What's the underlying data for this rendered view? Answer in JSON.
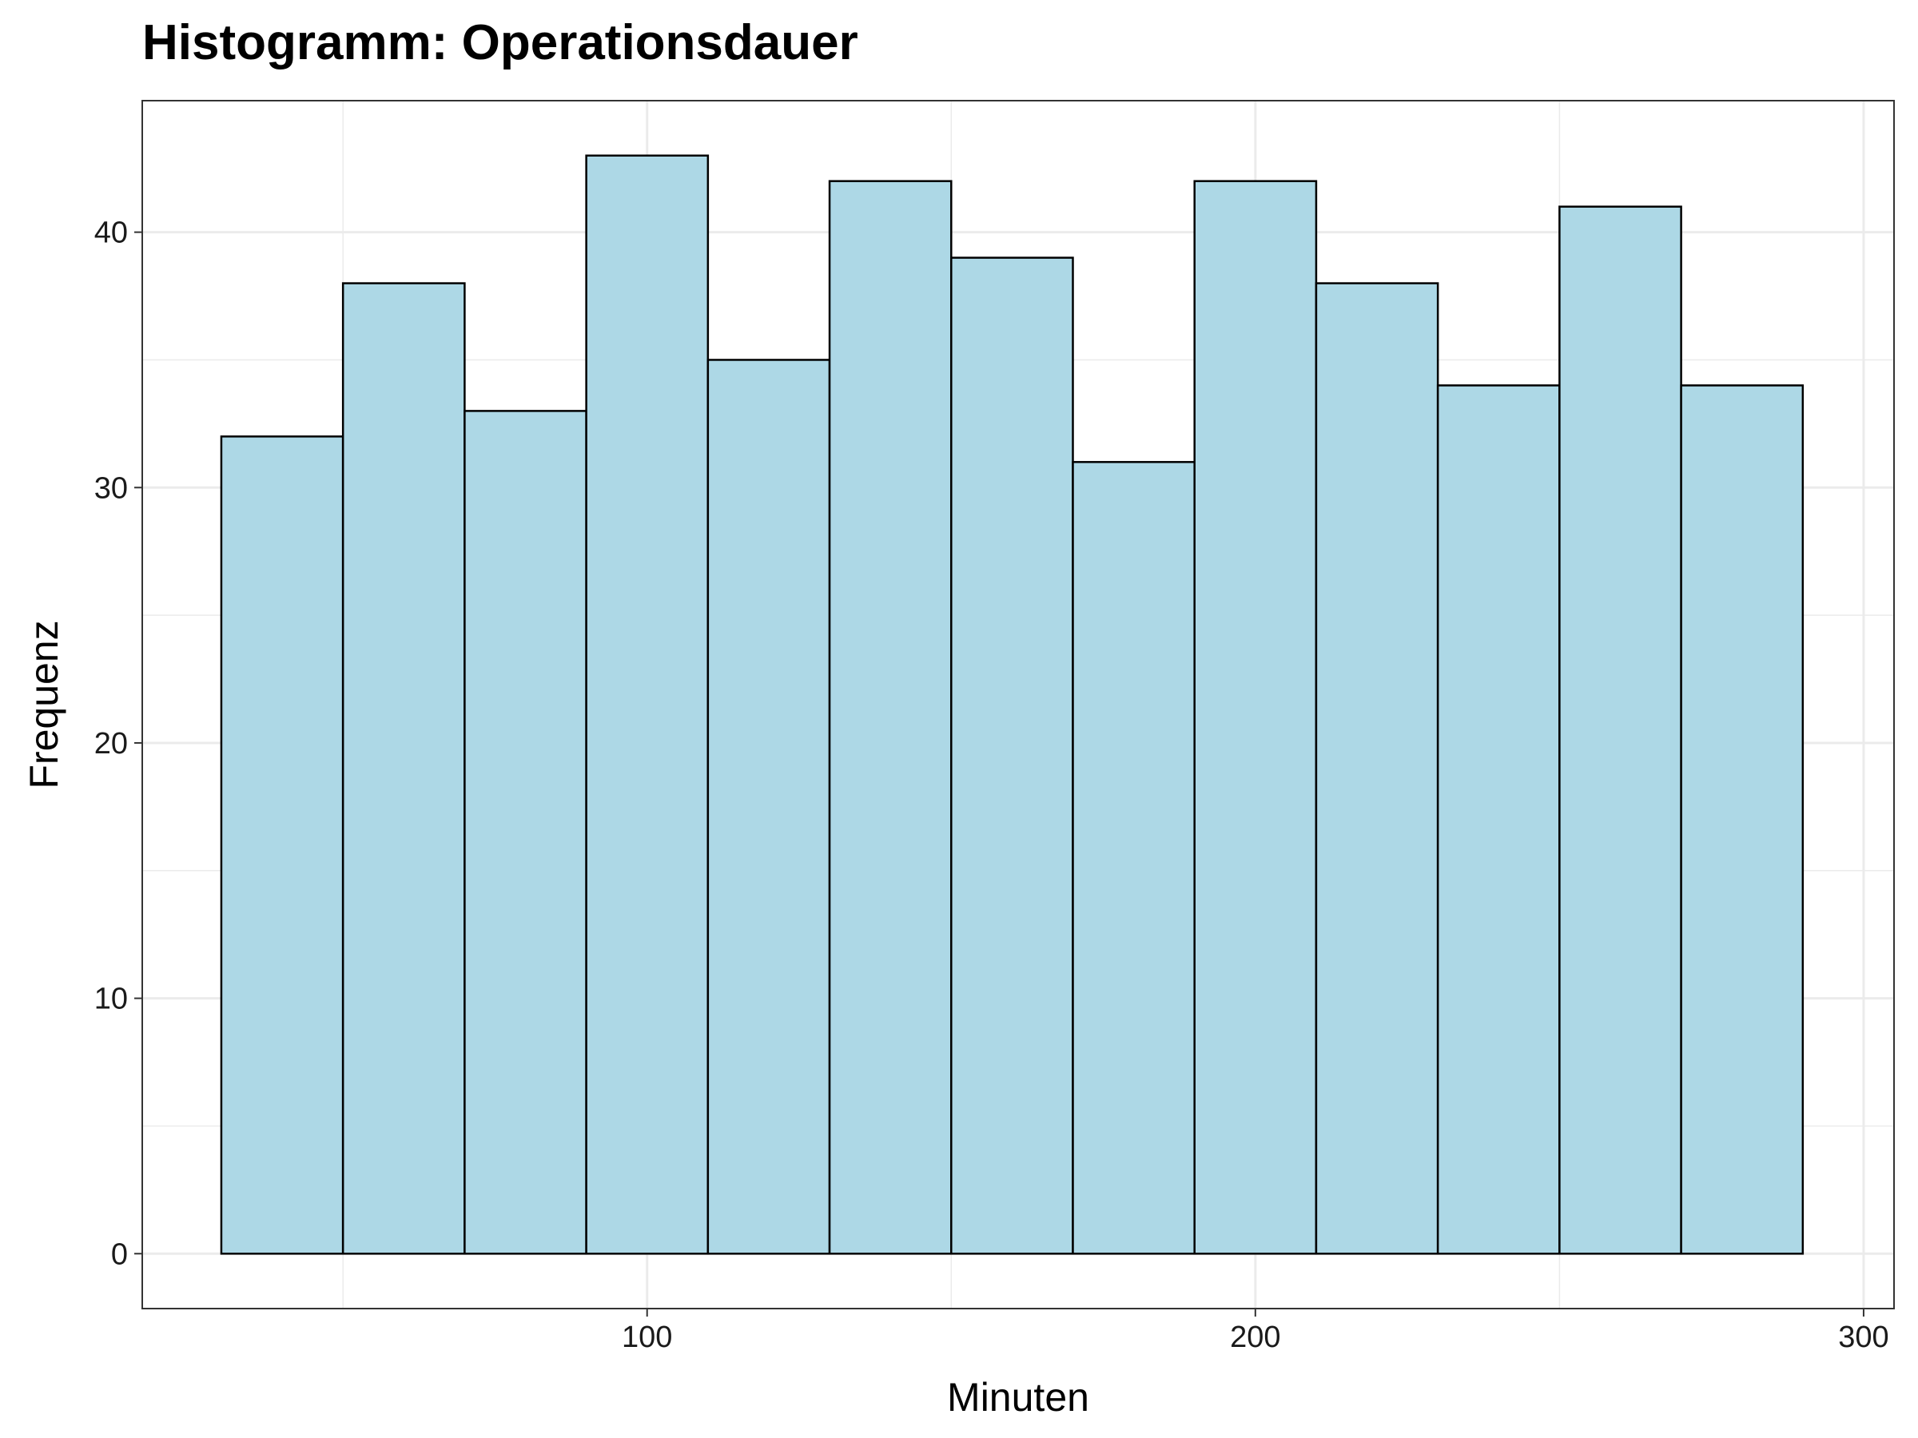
{
  "chart_data": {
    "type": "bar",
    "title": "Histogramm: Operationsdauer",
    "xlabel": "Minuten",
    "ylabel": "Frequenz",
    "bin_width": 20,
    "bins": [
      {
        "start": 30,
        "end": 50,
        "count": 32
      },
      {
        "start": 50,
        "end": 70,
        "count": 38
      },
      {
        "start": 70,
        "end": 90,
        "count": 33
      },
      {
        "start": 90,
        "end": 110,
        "count": 43
      },
      {
        "start": 110,
        "end": 130,
        "count": 35
      },
      {
        "start": 130,
        "end": 150,
        "count": 42
      },
      {
        "start": 150,
        "end": 170,
        "count": 39
      },
      {
        "start": 170,
        "end": 190,
        "count": 31
      },
      {
        "start": 190,
        "end": 210,
        "count": 42
      },
      {
        "start": 210,
        "end": 230,
        "count": 38
      },
      {
        "start": 230,
        "end": 250,
        "count": 34
      },
      {
        "start": 250,
        "end": 270,
        "count": 41
      },
      {
        "start": 270,
        "end": 290,
        "count": 34
      }
    ],
    "xlim": [
      17,
      305
    ],
    "ylim": [
      -2.15,
      45.15
    ],
    "x_ticks": [
      100,
      200,
      300
    ],
    "y_ticks": [
      0,
      10,
      20,
      30,
      40
    ],
    "grid": true,
    "colors": {
      "bar_fill": "#add8e6",
      "bar_stroke": "#000000",
      "grid": "#ebebeb",
      "panel_border": "#333333"
    }
  }
}
